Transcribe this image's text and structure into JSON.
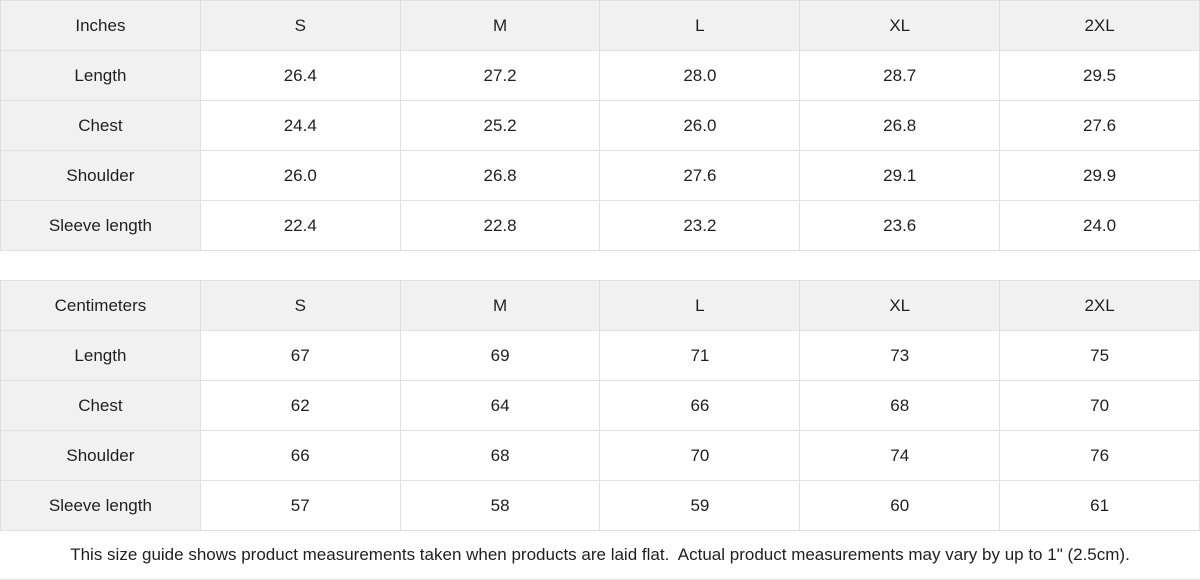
{
  "colors": {
    "header_bg": "#f1f1f1",
    "cell_bg": "#ffffff",
    "border": "#e0e0e0",
    "text": "#1f1f1f"
  },
  "chart_data": [
    {
      "type": "table",
      "title": "Inches",
      "columns": [
        "S",
        "M",
        "L",
        "XL",
        "2XL"
      ],
      "row_labels": [
        "Length",
        "Chest",
        "Shoulder",
        "Sleeve length"
      ],
      "rows": [
        [
          "26.4",
          "27.2",
          "28.0",
          "28.7",
          "29.5"
        ],
        [
          "24.4",
          "25.2",
          "26.0",
          "26.8",
          "27.6"
        ],
        [
          "26.0",
          "26.8",
          "27.6",
          "29.1",
          "29.9"
        ],
        [
          "22.4",
          "22.8",
          "23.2",
          "23.6",
          "24.0"
        ]
      ]
    },
    {
      "type": "table",
      "title": "Centimeters",
      "columns": [
        "S",
        "M",
        "L",
        "XL",
        "2XL"
      ],
      "row_labels": [
        "Length",
        "Chest",
        "Shoulder",
        "Sleeve length"
      ],
      "rows": [
        [
          "67",
          "69",
          "71",
          "73",
          "75"
        ],
        [
          "62",
          "64",
          "66",
          "68",
          "70"
        ],
        [
          "66",
          "68",
          "70",
          "74",
          "76"
        ],
        [
          "57",
          "58",
          "59",
          "60",
          "61"
        ]
      ]
    }
  ],
  "footer": {
    "note": "This size guide shows product measurements taken when products are laid flat.  Actual product measurements may vary by up to 1\" (2.5cm)."
  }
}
